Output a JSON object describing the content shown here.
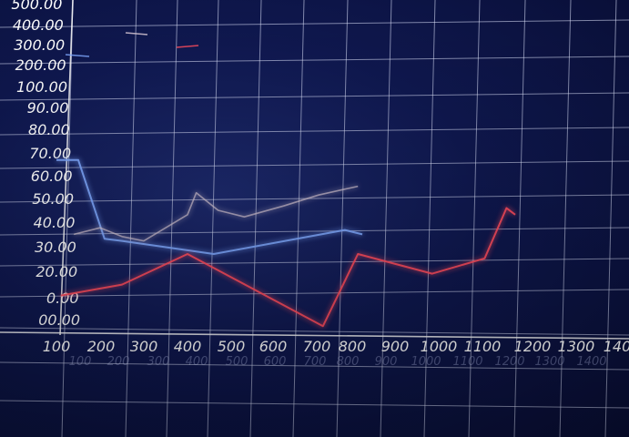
{
  "chart_data": {
    "type": "line",
    "title": "",
    "xlabel": "",
    "ylabel": "",
    "x_ticks": [
      "100",
      "200",
      "300",
      "400",
      "500",
      "600",
      "700",
      "800",
      "900",
      "1000",
      "1100",
      "1200",
      "1300",
      "140"
    ],
    "y_ticks": [
      "00.00",
      "0.00",
      "20.00",
      "30.00",
      "40.00",
      "50.00",
      "60.00",
      "70.00",
      "80.00",
      "90.00",
      "100.00",
      "200.00",
      "300.00",
      "400.00",
      "500.00"
    ],
    "ghost_x_ticks": [
      "100",
      "200",
      "300",
      "400",
      "500",
      "600",
      "700",
      "800",
      "900",
      "1000",
      "1100",
      "1200",
      "1300",
      "1400"
    ],
    "grid": true,
    "legend": "top-left",
    "series": [
      {
        "color": "#7fa8ff",
        "x": [
          100,
          150,
          210,
          250,
          460,
          760,
          800
        ],
        "y": [
          78,
          78,
          42,
          41,
          35,
          46,
          44
        ]
      },
      {
        "color": "#d9c9d6",
        "x": [
          140,
          200,
          250,
          300,
          400,
          420,
          470,
          530,
          620,
          700,
          790
        ],
        "y": [
          44,
          47,
          43,
          41,
          53,
          63,
          55,
          52,
          57,
          62,
          66
        ]
      },
      {
        "color": "#ff4d5e",
        "x": [
          110,
          250,
          400,
          710,
          790,
          960,
          1080,
          1130,
          1150
        ],
        "y": [
          16,
          21,
          35,
          2,
          35,
          26,
          33,
          56,
          53
        ]
      }
    ]
  }
}
